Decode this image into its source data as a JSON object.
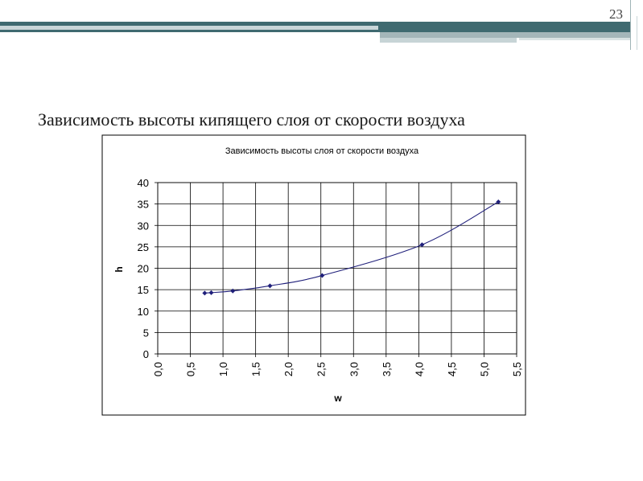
{
  "slide": {
    "number": "23",
    "title": "Зависимость высоты кипящего слоя от скорости воздуха"
  },
  "colors": {
    "accent_dark": "#3f6a70",
    "accent_light": "#c9d6d8",
    "series": "#1f1f7a"
  },
  "chart_data": {
    "type": "line",
    "title": "Зависимость высоты слоя от скорости воздуха",
    "xlabel": "w",
    "ylabel": "h",
    "xlim": [
      0,
      5.5
    ],
    "ylim": [
      0,
      40
    ],
    "x_ticks": [
      "0,0",
      "0,5",
      "1,0",
      "1,5",
      "2,0",
      "2,5",
      "3,0",
      "3,5",
      "4,0",
      "4,5",
      "5,0",
      "5,5"
    ],
    "y_ticks": [
      "0",
      "5",
      "10",
      "15",
      "20",
      "25",
      "30",
      "35",
      "40"
    ],
    "grid": true,
    "legend": "none",
    "series": [
      {
        "x": [
          0.72,
          0.82,
          1.15,
          1.72,
          2.52,
          4.05,
          5.22
        ],
        "y": [
          14.2,
          14.3,
          14.7,
          15.9,
          18.3,
          25.5,
          35.5
        ]
      }
    ]
  }
}
